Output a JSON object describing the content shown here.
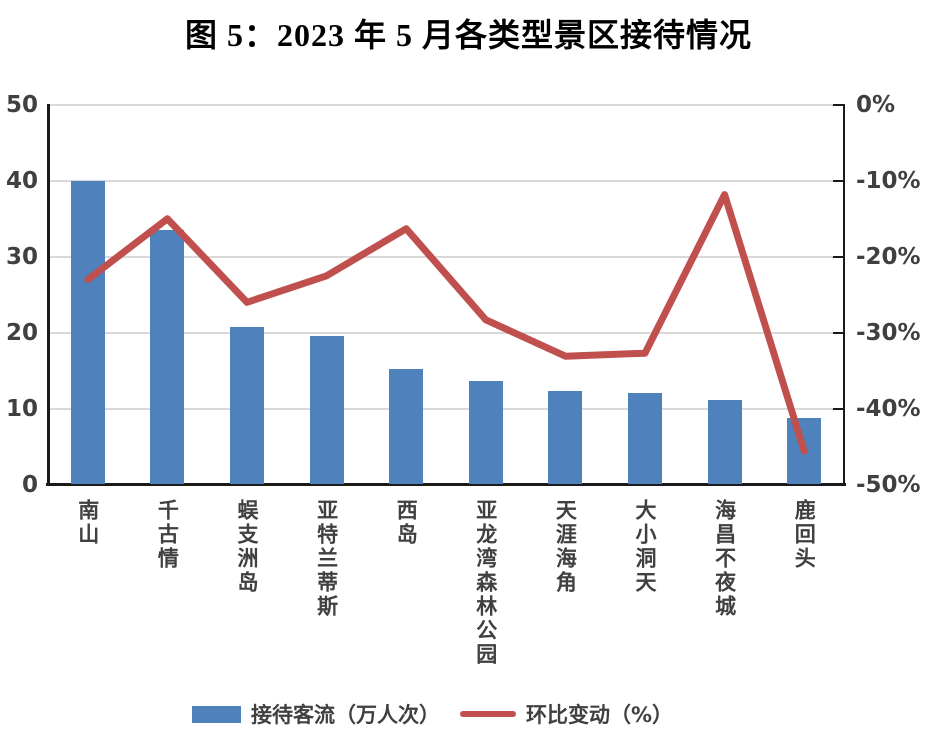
{
  "title": "图 5：2023 年 5 月各类型景区接待情况",
  "chart_data": {
    "type": "bar+line",
    "title": "图 5：2023 年 5 月各类型景区接待情况",
    "categories": [
      "南山",
      "千古情",
      "蜈支洲岛",
      "亚特兰蒂斯",
      "西岛",
      "亚龙湾森林公园",
      "天涯海角",
      "大小洞天",
      "海昌不夜城",
      "鹿回头"
    ],
    "series": [
      {
        "name": "接待客流（万人次）",
        "type": "bar",
        "axis": "left",
        "color": "#4F81BD",
        "values": [
          40,
          33.5,
          20.7,
          19.6,
          15.2,
          13.7,
          12.3,
          12.0,
          11.1,
          8.8
        ]
      },
      {
        "name": "环比变动（%）",
        "type": "line",
        "axis": "right",
        "color": "#C0504D",
        "values": [
          -23,
          -15,
          -26,
          -22.5,
          -16.3,
          -28.3,
          -33.1,
          -32.7,
          -11.8,
          -45.6
        ]
      }
    ],
    "left_axis": {
      "min": 0,
      "max": 50,
      "tick_labels": [
        "50",
        "40",
        "30",
        "20",
        "10",
        "0"
      ]
    },
    "right_axis": {
      "min": -50,
      "max": 0,
      "tick_labels": [
        "0%",
        "-10%",
        "-20%",
        "-30%",
        "-40%",
        "-50%"
      ]
    },
    "grid": true,
    "legend_position": "bottom"
  },
  "colors": {
    "bar": "#4F81BD",
    "line": "#C0504D",
    "gridline": "#d9d9d9",
    "axis": "#1a1a1a",
    "label_text": "#404040",
    "title_text": "#000000"
  }
}
